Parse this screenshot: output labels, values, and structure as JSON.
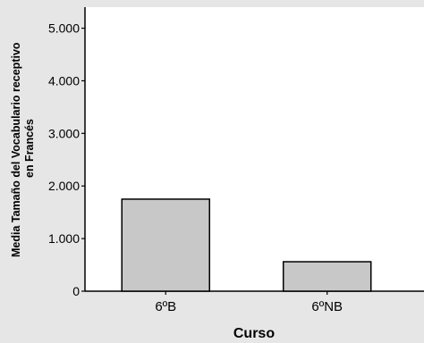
{
  "chart_data": {
    "type": "bar",
    "categories": [
      "6ºB",
      "6ºNB"
    ],
    "values": [
      1750,
      560
    ],
    "xlabel": "Curso",
    "ylabel_lines": [
      "Media Tamaño del Vocabulario receptivo",
      "en Francés"
    ],
    "ylim": [
      0,
      5400
    ],
    "yticks": [
      0,
      1000,
      2000,
      3000,
      4000,
      5000
    ],
    "ytick_labels": [
      "0",
      "1.000",
      "2.000",
      "3.000",
      "4.000",
      "5.000"
    ],
    "grid": false,
    "legend": "none"
  },
  "colors": {
    "background": "#e6e6e6",
    "plot_area": "#ffffff",
    "bar_fill": "#c8c8c8",
    "bar_stroke": "#000000"
  }
}
